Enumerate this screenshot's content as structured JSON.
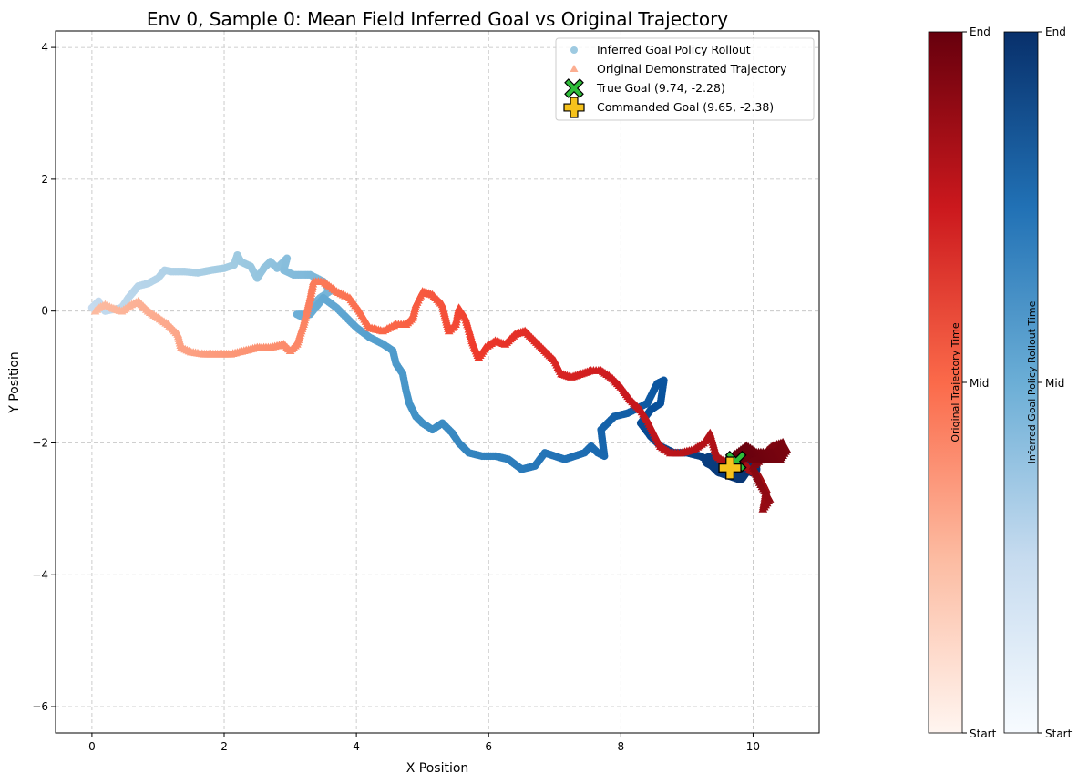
{
  "chart_data": {
    "type": "scatter",
    "title": "Env 0, Sample 0: Mean Field Inferred Goal vs Original Trajectory",
    "xlabel": "X Position",
    "ylabel": "Y Position",
    "xlim": [
      -0.55,
      11.0
    ],
    "ylim": [
      -6.4,
      4.25
    ],
    "x_ticks": [
      0,
      2,
      4,
      6,
      8,
      10
    ],
    "y_ticks": [
      -6,
      -4,
      -2,
      0,
      2,
      4
    ],
    "grid": true,
    "legend_position": "top-right",
    "series": [
      {
        "name": "Inferred Goal Policy Rollout",
        "marker": "circle",
        "colormap": "Blues",
        "points": [
          [
            0.0,
            0.05
          ],
          [
            0.05,
            0.1
          ],
          [
            0.1,
            0.15
          ],
          [
            0.15,
            0.05
          ],
          [
            0.2,
            0.0
          ],
          [
            0.3,
            0.02
          ],
          [
            0.45,
            0.05
          ],
          [
            0.55,
            0.2
          ],
          [
            0.7,
            0.38
          ],
          [
            0.85,
            0.42
          ],
          [
            1.0,
            0.5
          ],
          [
            1.1,
            0.62
          ],
          [
            1.2,
            0.6
          ],
          [
            1.4,
            0.6
          ],
          [
            1.6,
            0.58
          ],
          [
            1.8,
            0.62
          ],
          [
            2.0,
            0.65
          ],
          [
            2.15,
            0.7
          ],
          [
            2.2,
            0.85
          ],
          [
            2.25,
            0.75
          ],
          [
            2.4,
            0.68
          ],
          [
            2.5,
            0.5
          ],
          [
            2.6,
            0.65
          ],
          [
            2.7,
            0.75
          ],
          [
            2.8,
            0.65
          ],
          [
            2.95,
            0.8
          ],
          [
            2.9,
            0.62
          ],
          [
            3.05,
            0.55
          ],
          [
            3.3,
            0.55
          ],
          [
            3.5,
            0.45
          ],
          [
            3.6,
            0.3
          ],
          [
            3.45,
            0.2
          ],
          [
            3.3,
            0.05
          ],
          [
            3.2,
            -0.1
          ],
          [
            3.1,
            -0.05
          ],
          [
            3.3,
            -0.05
          ],
          [
            3.5,
            0.2
          ],
          [
            3.7,
            0.05
          ],
          [
            3.85,
            -0.1
          ],
          [
            4.0,
            -0.25
          ],
          [
            4.2,
            -0.4
          ],
          [
            4.4,
            -0.5
          ],
          [
            4.55,
            -0.6
          ],
          [
            4.6,
            -0.8
          ],
          [
            4.7,
            -0.95
          ],
          [
            4.75,
            -1.2
          ],
          [
            4.8,
            -1.4
          ],
          [
            4.9,
            -1.6
          ],
          [
            5.0,
            -1.7
          ],
          [
            5.15,
            -1.8
          ],
          [
            5.3,
            -1.7
          ],
          [
            5.45,
            -1.85
          ],
          [
            5.55,
            -2.0
          ],
          [
            5.7,
            -2.15
          ],
          [
            5.9,
            -2.2
          ],
          [
            6.1,
            -2.2
          ],
          [
            6.3,
            -2.25
          ],
          [
            6.5,
            -2.4
          ],
          [
            6.7,
            -2.35
          ],
          [
            6.85,
            -2.15
          ],
          [
            7.0,
            -2.2
          ],
          [
            7.15,
            -2.25
          ],
          [
            7.3,
            -2.2
          ],
          [
            7.45,
            -2.15
          ],
          [
            7.55,
            -2.05
          ],
          [
            7.65,
            -2.15
          ],
          [
            7.75,
            -2.2
          ],
          [
            7.7,
            -1.8
          ],
          [
            7.9,
            -1.6
          ],
          [
            8.1,
            -1.55
          ],
          [
            8.2,
            -1.5
          ],
          [
            8.4,
            -1.4
          ],
          [
            8.55,
            -1.1
          ],
          [
            8.65,
            -1.05
          ],
          [
            8.6,
            -1.4
          ],
          [
            8.45,
            -1.5
          ],
          [
            8.3,
            -1.7
          ],
          [
            8.45,
            -1.9
          ],
          [
            8.6,
            -2.05
          ],
          [
            8.8,
            -2.15
          ],
          [
            9.0,
            -2.15
          ],
          [
            9.2,
            -2.2
          ],
          [
            9.4,
            -2.3
          ],
          [
            9.5,
            -2.4
          ],
          [
            9.65,
            -2.45
          ],
          [
            9.8,
            -2.5
          ],
          [
            9.9,
            -2.35
          ],
          [
            10.0,
            -2.4
          ],
          [
            9.7,
            -2.3
          ]
        ]
      },
      {
        "name": "Original Demonstrated Trajectory",
        "marker": "triangle",
        "colormap": "Reds",
        "points": [
          [
            0.05,
            0.0
          ],
          [
            0.1,
            0.05
          ],
          [
            0.2,
            0.1
          ],
          [
            0.3,
            0.05
          ],
          [
            0.45,
            0.0
          ],
          [
            0.6,
            0.1
          ],
          [
            0.7,
            0.15
          ],
          [
            0.85,
            0.0
          ],
          [
            1.0,
            -0.1
          ],
          [
            1.15,
            -0.2
          ],
          [
            1.3,
            -0.35
          ],
          [
            1.35,
            -0.55
          ],
          [
            1.5,
            -0.62
          ],
          [
            1.7,
            -0.65
          ],
          [
            1.9,
            -0.65
          ],
          [
            2.1,
            -0.65
          ],
          [
            2.3,
            -0.6
          ],
          [
            2.5,
            -0.55
          ],
          [
            2.7,
            -0.55
          ],
          [
            2.9,
            -0.5
          ],
          [
            3.0,
            -0.6
          ],
          [
            3.1,
            -0.5
          ],
          [
            3.2,
            -0.2
          ],
          [
            3.3,
            0.2
          ],
          [
            3.35,
            0.45
          ],
          [
            3.5,
            0.45
          ],
          [
            3.7,
            0.3
          ],
          [
            3.9,
            0.2
          ],
          [
            4.05,
            0.0
          ],
          [
            4.2,
            -0.25
          ],
          [
            4.4,
            -0.3
          ],
          [
            4.6,
            -0.2
          ],
          [
            4.75,
            -0.2
          ],
          [
            4.85,
            -0.1
          ],
          [
            4.9,
            0.1
          ],
          [
            5.0,
            0.3
          ],
          [
            5.15,
            0.25
          ],
          [
            5.3,
            0.1
          ],
          [
            5.4,
            -0.3
          ],
          [
            5.5,
            -0.2
          ],
          [
            5.55,
            0.05
          ],
          [
            5.65,
            -0.1
          ],
          [
            5.75,
            -0.45
          ],
          [
            5.85,
            -0.7
          ],
          [
            5.95,
            -0.55
          ],
          [
            6.1,
            -0.45
          ],
          [
            6.25,
            -0.5
          ],
          [
            6.4,
            -0.35
          ],
          [
            6.55,
            -0.3
          ],
          [
            6.7,
            -0.45
          ],
          [
            6.85,
            -0.6
          ],
          [
            7.0,
            -0.75
          ],
          [
            7.1,
            -0.95
          ],
          [
            7.25,
            -1.0
          ],
          [
            7.4,
            -0.95
          ],
          [
            7.55,
            -0.9
          ],
          [
            7.7,
            -0.9
          ],
          [
            7.85,
            -1.0
          ],
          [
            8.0,
            -1.15
          ],
          [
            8.15,
            -1.35
          ],
          [
            8.3,
            -1.5
          ],
          [
            8.4,
            -1.65
          ],
          [
            8.5,
            -1.85
          ],
          [
            8.6,
            -2.05
          ],
          [
            8.75,
            -2.15
          ],
          [
            8.9,
            -2.15
          ],
          [
            9.1,
            -2.1
          ],
          [
            9.25,
            -2.0
          ],
          [
            9.35,
            -1.85
          ],
          [
            9.45,
            -2.2
          ],
          [
            9.6,
            -2.3
          ],
          [
            9.8,
            -2.2
          ],
          [
            9.95,
            -2.4
          ],
          [
            10.1,
            -2.5
          ],
          [
            10.2,
            -2.7
          ],
          [
            10.15,
            -3.0
          ],
          [
            10.25,
            -2.85
          ],
          [
            10.1,
            -2.6
          ],
          [
            10.0,
            -2.35
          ],
          [
            10.3,
            -2.1
          ],
          [
            10.45,
            -2.05
          ],
          [
            10.35,
            -2.2
          ],
          [
            10.05,
            -2.2
          ],
          [
            9.9,
            -2.1
          ],
          [
            9.7,
            -2.25
          ]
        ]
      }
    ],
    "true_goal": {
      "label": "True Goal (9.74, -2.28)",
      "x": 9.74,
      "y": -2.28,
      "color": "#2fbd3a"
    },
    "commanded_goal": {
      "label": "Commanded Goal (9.65, -2.38)",
      "x": 9.65,
      "y": -2.38,
      "color": "#f6c21c"
    },
    "colorbars": [
      {
        "label": "Original Trajectory Time",
        "colormap": "Reds",
        "ticks": [
          "Start",
          "Mid",
          "End"
        ]
      },
      {
        "label": "Inferred Goal Policy Rollout Time",
        "colormap": "Blues",
        "ticks": [
          "Start",
          "Mid",
          "End"
        ]
      }
    ]
  }
}
